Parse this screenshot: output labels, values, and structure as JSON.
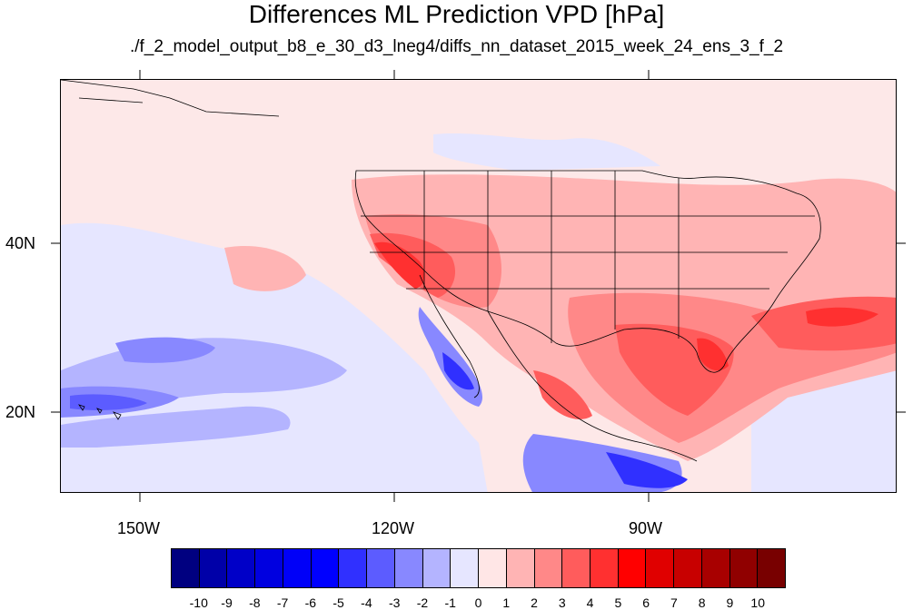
{
  "title": "Differences ML Prediction VPD [hPa]",
  "subtitle": "./f_2_model_output_b8_e_30_d3_lneg4/diffs_nn_dataset_2015_week_24_ens_3_f_2",
  "map": {
    "lat_labels": [
      "40N",
      "20N"
    ],
    "lon_labels": [
      "150W",
      "120W",
      "90W"
    ],
    "lon_range": [
      -159.5,
      -61
    ],
    "lat_range": [
      10,
      59
    ]
  },
  "colorbar": {
    "labels": [
      "-10",
      "-9",
      "-8",
      "-7",
      "-6",
      "-5",
      "-4",
      "-3",
      "-2",
      "-1",
      "0",
      "1",
      "2",
      "3",
      "4",
      "5",
      "6",
      "7",
      "8",
      "9",
      "10"
    ],
    "colors": [
      "#000080",
      "#0000a8",
      "#0000c8",
      "#0000e0",
      "#0000f8",
      "#0000ff",
      "#3030ff",
      "#5c5cff",
      "#8888ff",
      "#b4b4ff",
      "#e6e6ff",
      "#ffe6e6",
      "#ffb4b4",
      "#ff8888",
      "#ff5c5c",
      "#ff3030",
      "#ff0000",
      "#e00000",
      "#c80000",
      "#a80000",
      "#900000",
      "#780000"
    ]
  },
  "palette": {
    "background": "#fde8e8",
    "pale_blue": "#e6e6ff",
    "light_blue": "#b4b4ff",
    "mid_blue": "#8888ff",
    "blue": "#5c5cff",
    "deep_blue": "#3030ff",
    "light_red": "#ffb4b4",
    "mid_red": "#ff8888",
    "red": "#ff5c5c",
    "deep_red": "#ff3030"
  }
}
